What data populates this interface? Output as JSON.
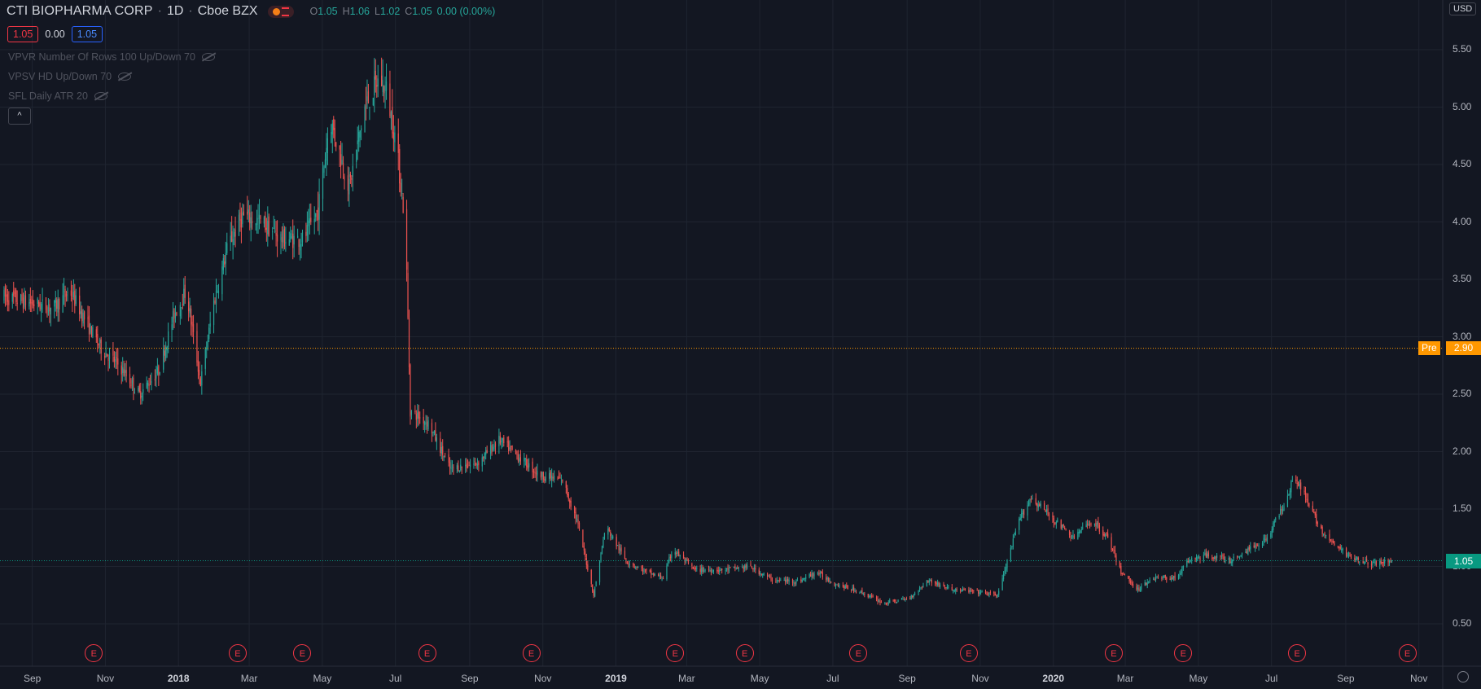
{
  "header": {
    "symbol": "CTI BIOPHARMA CORP",
    "interval": "1D",
    "exchange": "Cboe BZX",
    "market_status_icon": "market-closed-icon",
    "ohlc": {
      "o_label": "O",
      "o": "1.05",
      "h_label": "H",
      "h": "1.06",
      "l_label": "L",
      "l": "1.02",
      "c_label": "C",
      "c": "1.05",
      "change": "0.00 (0.00%)"
    }
  },
  "trade": {
    "sell": "1.05",
    "spread": "0.00",
    "buy": "1.05"
  },
  "indicators": [
    {
      "label": "VPVR Number Of Rows 100 Up/Down 70"
    },
    {
      "label": "VPSV HD Up/Down 70"
    },
    {
      "label": "SFL Daily ATR 20"
    }
  ],
  "currency": "USD",
  "price_labels": {
    "pre_label": "Pre",
    "pre_value": "2.90",
    "last_value": "1.05"
  },
  "colors": {
    "up": "#26a69a",
    "down": "#ef5350",
    "pre": "#ff9800",
    "last": "#089981",
    "background": "#131722",
    "grid": "#1f2430"
  },
  "chart_data": {
    "type": "candlestick",
    "title": "CTI BIOPHARMA CORP",
    "ylim": [
      0.35,
      5.75
    ],
    "y_ticks": [
      "0.50",
      "1.00",
      "1.50",
      "2.00",
      "2.50",
      "3.00",
      "3.50",
      "4.00",
      "4.50",
      "5.00",
      "5.50"
    ],
    "x_ticks": [
      {
        "label": "Sep",
        "bold": false
      },
      {
        "label": "Nov",
        "bold": false
      },
      {
        "label": "2018",
        "bold": true
      },
      {
        "label": "Mar",
        "bold": false
      },
      {
        "label": "May",
        "bold": false
      },
      {
        "label": "Jul",
        "bold": false
      },
      {
        "label": "Sep",
        "bold": false
      },
      {
        "label": "Nov",
        "bold": false
      },
      {
        "label": "2019",
        "bold": true
      },
      {
        "label": "Mar",
        "bold": false
      },
      {
        "label": "May",
        "bold": false
      },
      {
        "label": "Jul",
        "bold": false
      },
      {
        "label": "Sep",
        "bold": false
      },
      {
        "label": "Nov",
        "bold": false
      },
      {
        "label": "2020",
        "bold": true
      },
      {
        "label": "Mar",
        "bold": false
      },
      {
        "label": "May",
        "bold": false
      },
      {
        "label": "Jul",
        "bold": false
      },
      {
        "label": "Sep",
        "bold": false
      },
      {
        "label": "Nov",
        "bold": false
      }
    ],
    "earnings_markers": [
      "E",
      "E",
      "E",
      "E",
      "E",
      "E",
      "E",
      "E",
      "E",
      "E",
      "E",
      "E",
      "E"
    ],
    "pre_market_price": 2.9,
    "last_price": 1.05,
    "close_path": [
      [
        "2017-08-20",
        3.35
      ],
      [
        "2017-09-10",
        3.3
      ],
      [
        "2017-10-01",
        3.25
      ],
      [
        "2017-10-15",
        3.4
      ],
      [
        "2017-10-30",
        3.1
      ],
      [
        "2017-11-10",
        2.9
      ],
      [
        "2017-11-25",
        2.75
      ],
      [
        "2017-12-12",
        2.5
      ],
      [
        "2017-12-28",
        2.7
      ],
      [
        "2018-01-10",
        3.2
      ],
      [
        "2018-01-20",
        3.4
      ],
      [
        "2018-02-01",
        2.6
      ],
      [
        "2018-02-12",
        3.3
      ],
      [
        "2018-02-24",
        3.8
      ],
      [
        "2018-03-08",
        4.05
      ],
      [
        "2018-03-24",
        4.0
      ],
      [
        "2018-04-10",
        3.85
      ],
      [
        "2018-04-28",
        3.85
      ],
      [
        "2018-05-10",
        4.1
      ],
      [
        "2018-05-20",
        4.9
      ],
      [
        "2018-06-05",
        4.3
      ],
      [
        "2018-06-18",
        5.0
      ],
      [
        "2018-06-30",
        5.25
      ],
      [
        "2018-07-06",
        5.15
      ],
      [
        "2018-07-14",
        4.7
      ],
      [
        "2018-07-22",
        3.95
      ],
      [
        "2018-07-26",
        2.35
      ],
      [
        "2018-08-10",
        2.25
      ],
      [
        "2018-08-28",
        1.85
      ],
      [
        "2018-09-20",
        1.9
      ],
      [
        "2018-10-08",
        2.1
      ],
      [
        "2018-10-25",
        1.95
      ],
      [
        "2018-11-10",
        1.8
      ],
      [
        "2018-11-30",
        1.75
      ],
      [
        "2018-12-12",
        1.4
      ],
      [
        "2018-12-26",
        0.75
      ],
      [
        "2019-01-05",
        1.35
      ],
      [
        "2019-01-22",
        1.05
      ],
      [
        "2019-02-08",
        0.95
      ],
      [
        "2019-02-22",
        0.9
      ],
      [
        "2019-03-02",
        1.15
      ],
      [
        "2019-03-20",
        0.97
      ],
      [
        "2019-04-15",
        0.97
      ],
      [
        "2019-05-05",
        1.0
      ],
      [
        "2019-05-25",
        0.88
      ],
      [
        "2019-06-15",
        0.87
      ],
      [
        "2019-06-30",
        0.95
      ],
      [
        "2019-07-15",
        0.85
      ],
      [
        "2019-08-05",
        0.78
      ],
      [
        "2019-08-25",
        0.68
      ],
      [
        "2019-09-15",
        0.72
      ],
      [
        "2019-10-01",
        0.88
      ],
      [
        "2019-10-20",
        0.8
      ],
      [
        "2019-11-10",
        0.78
      ],
      [
        "2019-11-28",
        0.75
      ],
      [
        "2019-12-05",
        1.0
      ],
      [
        "2019-12-16",
        1.4
      ],
      [
        "2019-12-26",
        1.6
      ],
      [
        "2020-01-10",
        1.45
      ],
      [
        "2020-01-30",
        1.25
      ],
      [
        "2020-02-15",
        1.4
      ],
      [
        "2020-02-28",
        1.25
      ],
      [
        "2020-03-10",
        0.95
      ],
      [
        "2020-03-24",
        0.8
      ],
      [
        "2020-04-05",
        0.9
      ],
      [
        "2020-04-25",
        0.9
      ],
      [
        "2020-05-05",
        1.05
      ],
      [
        "2020-05-22",
        1.1
      ],
      [
        "2020-06-10",
        1.05
      ],
      [
        "2020-06-25",
        1.15
      ],
      [
        "2020-07-10",
        1.25
      ],
      [
        "2020-07-24",
        1.55
      ],
      [
        "2020-08-02",
        1.8
      ],
      [
        "2020-08-15",
        1.5
      ],
      [
        "2020-08-28",
        1.25
      ],
      [
        "2020-09-15",
        1.1
      ],
      [
        "2020-10-05",
        1.02
      ],
      [
        "2020-10-22",
        1.05
      ]
    ]
  }
}
